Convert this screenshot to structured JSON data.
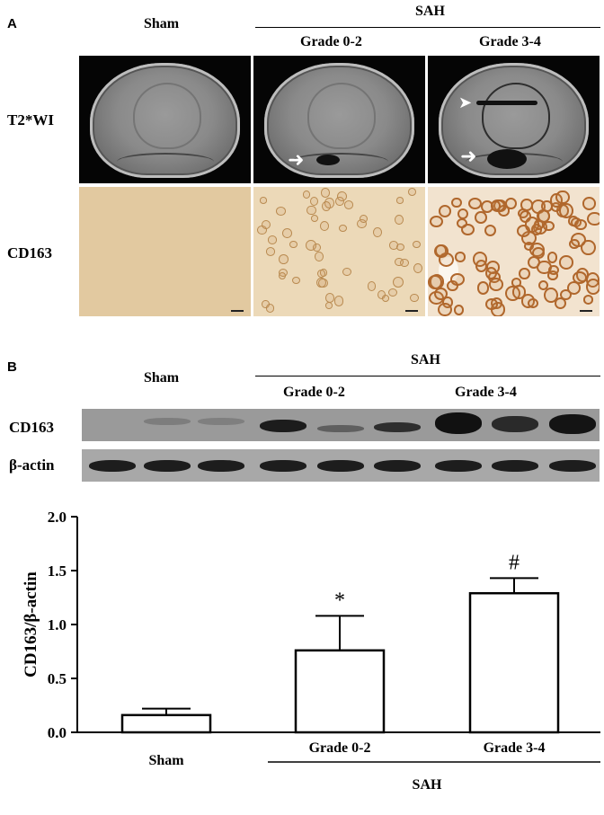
{
  "panel_a": {
    "letter": "A",
    "header_sham": "Sham",
    "header_sah": "SAH",
    "header_grade1": "Grade 0-2",
    "header_grade2": "Grade 3-4",
    "row1_label": "T2*WI",
    "row2_label": "CD163"
  },
  "panel_b": {
    "letter": "B",
    "header_sham": "Sham",
    "header_sah": "SAH",
    "header_grade1": "Grade 0-2",
    "header_grade2": "Grade 3-4",
    "blot1_label": "CD163",
    "blot2_label": "β-actin"
  },
  "chart_data": {
    "type": "bar",
    "categories": [
      "Sham",
      "Grade 0-2",
      "Grade 3-4"
    ],
    "values": [
      0.16,
      0.76,
      1.29
    ],
    "error": [
      0.06,
      0.32,
      0.14
    ],
    "annotations": [
      "",
      "*",
      "#"
    ],
    "group_label": "SAH",
    "ylabel": "CD163/β-actin",
    "ylim": [
      0.0,
      2.0
    ],
    "yticks": [
      "0.0",
      "0.5",
      "1.0",
      "1.5",
      "2.0"
    ],
    "grid": false,
    "bar_fill": "#ffffff",
    "bar_stroke": "#000000"
  }
}
